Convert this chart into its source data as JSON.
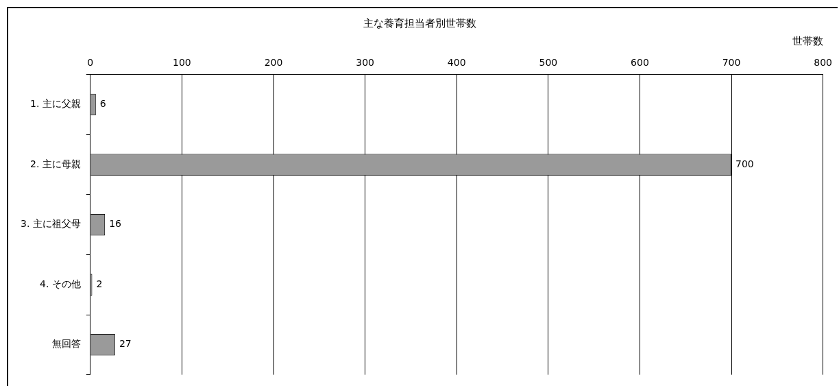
{
  "chart_data": {
    "type": "bar",
    "orientation": "horizontal",
    "title": "主な養育担当者別世帯数",
    "xlabel": "世帯数",
    "categories": [
      "1. 主に父親",
      "2. 主に母親",
      "3. 主に祖父母",
      "4. その他",
      "無回答"
    ],
    "values": [
      6,
      700,
      16,
      2,
      27
    ],
    "color": "#9a9a9a",
    "xlim": [
      0,
      800
    ],
    "xticks": [
      0,
      100,
      200,
      300,
      400,
      500,
      600,
      700,
      800
    ],
    "grid": "x",
    "legend": false,
    "data_labels": true
  }
}
